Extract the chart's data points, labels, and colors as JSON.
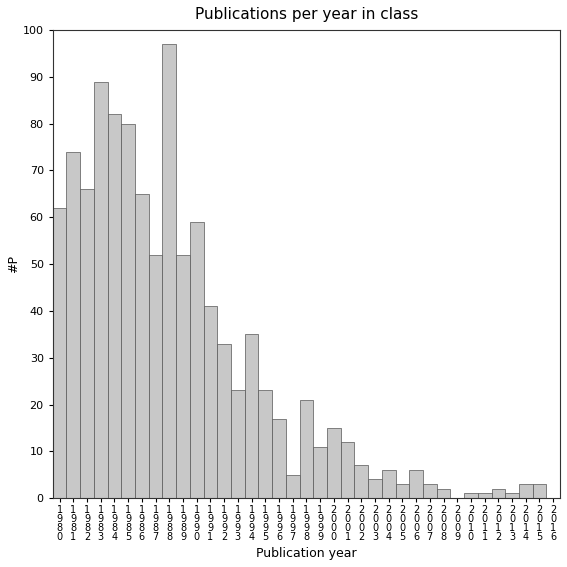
{
  "title": "Publications per year in class",
  "xlabel": "Publication year",
  "ylabel": "#P",
  "bar_color": "#c8c8c8",
  "bar_edgecolor": "#555555",
  "ylim": [
    0,
    100
  ],
  "yticks": [
    0,
    10,
    20,
    30,
    40,
    50,
    60,
    70,
    80,
    90,
    100
  ],
  "years": [
    "1980",
    "1981",
    "1982",
    "1983",
    "1984",
    "1985",
    "1986",
    "1987",
    "1988",
    "1989",
    "1990",
    "1991",
    "1992",
    "1993",
    "1994",
    "1995",
    "1996",
    "1997",
    "1998",
    "1999",
    "2000",
    "2001",
    "2002",
    "2003",
    "2004",
    "2005",
    "2006",
    "2007",
    "2008",
    "2009",
    "2010",
    "2011",
    "2012",
    "2013",
    "2014",
    "2015",
    "2016"
  ],
  "values": [
    62,
    74,
    66,
    89,
    82,
    80,
    65,
    52,
    97,
    52,
    59,
    41,
    33,
    23,
    35,
    23,
    17,
    5,
    21,
    11,
    15,
    12,
    7,
    4,
    6,
    3,
    6,
    3,
    2,
    0,
    1,
    1,
    2,
    1,
    3,
    3,
    0
  ],
  "title_fontsize": 11,
  "axis_fontsize": 9,
  "tick_fontsize": 8,
  "xtick_fontsize": 7
}
